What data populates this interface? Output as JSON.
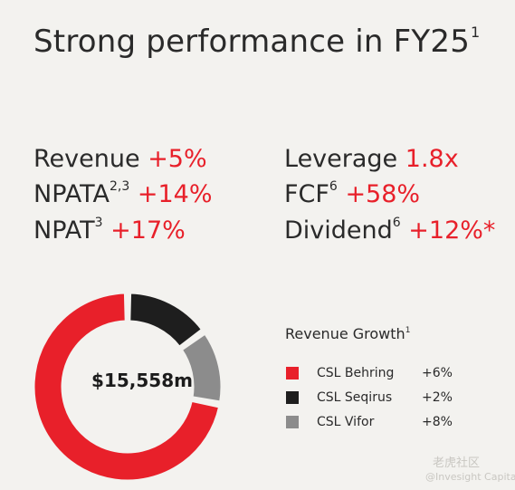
{
  "header": {
    "title": "Strong performance in FY25",
    "title_sup": "1"
  },
  "metrics": {
    "revenue": {
      "label": "Revenue",
      "sup": "",
      "value": "+5%"
    },
    "npata": {
      "label": "NPATA",
      "sup": "2,3",
      "value": "+14%"
    },
    "npat": {
      "label": "NPAT",
      "sup": "3",
      "value": "+17%"
    },
    "leverage": {
      "label": "Leverage",
      "sup": "",
      "value": "1.8x"
    },
    "fcf": {
      "label": "FCF",
      "sup": "6",
      "value": "+58%"
    },
    "dividend": {
      "label": "Dividend",
      "sup": "6",
      "value": "+12%*"
    }
  },
  "colors": {
    "accent": "#e8202a",
    "behring": "#e8202a",
    "seqirus": "#1e1e1e",
    "vifor": "#8c8c8c",
    "text": "#2a2a2a",
    "background": "#f3f2ef"
  },
  "chart_data": {
    "type": "pie",
    "donut": true,
    "center_label": "$15,558m",
    "categories": [
      "CSL Behring",
      "CSL Seqirus",
      "CSL Vifor"
    ],
    "values": [
      72,
      15,
      13
    ],
    "legend": {
      "title": "Revenue Growth",
      "title_sup": "1",
      "placement": "right",
      "items": [
        {
          "name": "CSL Behring",
          "growth": "+6%",
          "color": "#e8202a"
        },
        {
          "name": "CSL Seqirus",
          "growth": "+2%",
          "color": "#1e1e1e"
        },
        {
          "name": "CSL Vifor",
          "growth": "+8%",
          "color": "#8c8c8c"
        }
      ]
    }
  },
  "watermark": {
    "line1": "老虎社区",
    "line2": "@Invesight Capital"
  }
}
